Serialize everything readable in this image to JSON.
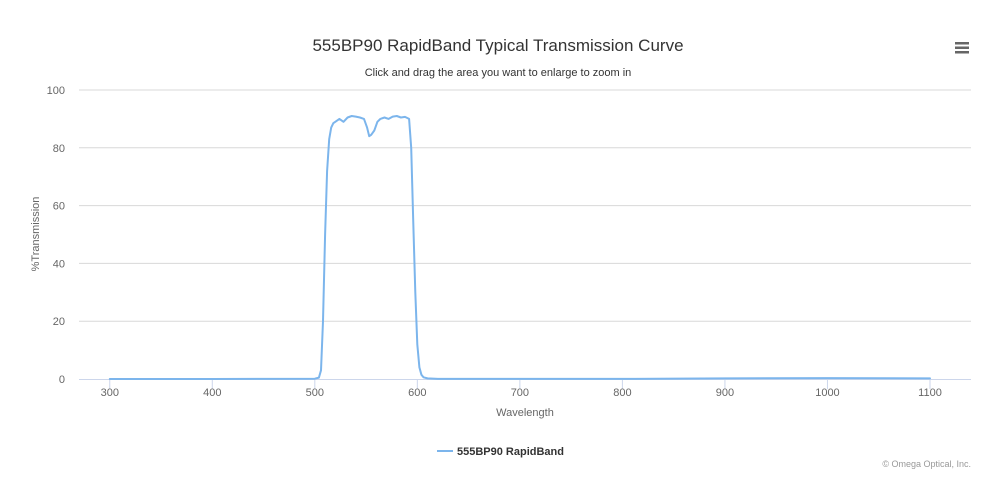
{
  "chart_data": {
    "type": "line",
    "title": "555BP90 RapidBand Typical Transmission Curve",
    "subtitle": "Click and drag the area you want to enlarge to zoom in",
    "xlabel": "Wavelength",
    "ylabel": "%Transmission",
    "xlim": [
      270,
      1140
    ],
    "ylim": [
      0,
      100
    ],
    "x_ticks": [
      "300",
      "400",
      "500",
      "600",
      "700",
      "800",
      "900",
      "1000",
      "1100"
    ],
    "y_ticks": [
      "0",
      "20",
      "40",
      "60",
      "80",
      "100"
    ],
    "grid": true,
    "legend_position": "bottom-center",
    "series": [
      {
        "name": "555BP90 RapidBand",
        "color": "#7cb5ec",
        "x": [
          300,
          400,
          500,
          504,
          506,
          508,
          510,
          512,
          514,
          516,
          518,
          520,
          524,
          528,
          532,
          536,
          540,
          544,
          548,
          551,
          553,
          555,
          558,
          561,
          564,
          568,
          572,
          576,
          580,
          584,
          588,
          592,
          594,
          596,
          598,
          600,
          602,
          604,
          606,
          610,
          620,
          700,
          800,
          900,
          1000,
          1100
        ],
        "y": [
          0,
          0,
          0.1,
          0.5,
          3,
          20,
          50,
          72,
          83,
          87,
          88.5,
          89,
          90,
          89,
          90.5,
          91,
          90.8,
          90.5,
          90,
          87,
          84,
          84.5,
          86,
          89,
          90,
          90.5,
          90,
          90.8,
          91,
          90.5,
          90.7,
          90,
          80,
          55,
          30,
          12,
          4,
          1.5,
          0.6,
          0.2,
          0.05,
          0.05,
          0.05,
          0.2,
          0.3,
          0.2
        ]
      }
    ]
  },
  "credits": "© Omega Optical, Inc.",
  "menu_icon": "hamburger-menu-icon"
}
